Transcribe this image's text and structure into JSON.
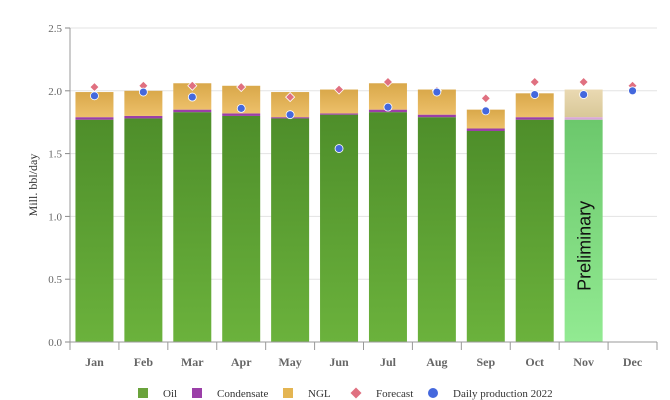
{
  "chart_data": {
    "type": "bar",
    "stacked": true,
    "title": "",
    "xlabel": "",
    "ylabel": "Mill. bbl/day",
    "ylim": [
      0,
      2.5
    ],
    "yticks": [
      "0.0",
      "0.5",
      "1.0",
      "1.5",
      "2.0",
      "2.5"
    ],
    "ytick_values": [
      0,
      0.5,
      1.0,
      1.5,
      2.0,
      2.5
    ],
    "grid": true,
    "legend_position": "bottom",
    "categories": [
      "Jan",
      "Feb",
      "Mar",
      "Apr",
      "May",
      "Jun",
      "Jul",
      "Aug",
      "Sep",
      "Oct",
      "Nov",
      "Dec"
    ],
    "series": [
      {
        "name": "Oil",
        "kind": "bar",
        "color": "#5f9e35",
        "values": [
          1.77,
          1.78,
          1.83,
          1.8,
          1.78,
          1.81,
          1.83,
          1.79,
          1.68,
          1.77,
          null,
          null
        ]
      },
      {
        "name": "Condensate",
        "kind": "bar",
        "color": "#9b3fa8",
        "values": [
          0.02,
          0.02,
          0.02,
          0.02,
          0.01,
          0.01,
          0.02,
          0.02,
          0.02,
          0.02,
          null,
          null
        ]
      },
      {
        "name": "NGL",
        "kind": "bar",
        "color": "#e2b04a",
        "values": [
          0.2,
          0.2,
          0.21,
          0.22,
          0.2,
          0.19,
          0.21,
          0.2,
          0.15,
          0.19,
          null,
          null
        ]
      },
      {
        "name": "Forecast",
        "kind": "marker",
        "marker": "diamond",
        "color": "#e07080",
        "values": [
          2.03,
          2.04,
          2.04,
          2.03,
          1.95,
          2.01,
          2.07,
          2.0,
          1.94,
          2.07,
          2.07,
          2.04
        ]
      },
      {
        "name": "Daily production 2022",
        "kind": "marker",
        "marker": "circle",
        "color": "#4468dd",
        "values": [
          1.96,
          1.99,
          1.95,
          1.86,
          1.81,
          1.54,
          1.87,
          1.99,
          1.84,
          1.97,
          1.97,
          2.0
        ]
      }
    ],
    "preliminary": {
      "category": "Nov",
      "label": "Preliminary",
      "oil": 1.77,
      "condensate": 0.02,
      "ngl": 0.22,
      "oil_color": "#8ce08c",
      "ngl_color": "#e6d3a6"
    },
    "legend": [
      "Oil",
      "Condensate",
      "NGL",
      "Forecast",
      "Daily production 2022"
    ]
  }
}
